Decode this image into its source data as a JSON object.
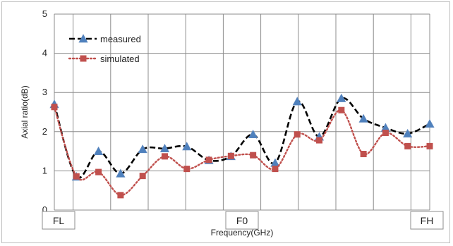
{
  "chart_data": {
    "type": "line",
    "xlabel": "Frequency(GHz)",
    "ylabel": "Axial ratio(dB)",
    "ylim": [
      0,
      5
    ],
    "yticks": [
      0,
      1,
      2,
      3,
      4,
      5
    ],
    "x_tick_labels": [
      {
        "label": "FL",
        "index": 0
      },
      {
        "label": "F0",
        "index": 10
      },
      {
        "label": "FH",
        "index": 20
      }
    ],
    "grid": true,
    "legend": "top-left",
    "series": [
      {
        "name": "measured",
        "color": "#000000",
        "marker_color": "#4f81bd",
        "marker": "triangle",
        "line_style": "dashed",
        "values": [
          2.7,
          0.85,
          1.5,
          0.93,
          1.55,
          1.57,
          1.62,
          1.27,
          1.37,
          1.93,
          1.2,
          2.77,
          1.87,
          2.85,
          2.33,
          2.1,
          1.95,
          2.2
        ]
      },
      {
        "name": "simulated",
        "color": "#c0504d",
        "marker_color": "#c0504d",
        "marker": "square",
        "line_style": "dotted",
        "values": [
          2.63,
          0.86,
          0.97,
          0.38,
          0.87,
          1.37,
          1.05,
          1.28,
          1.38,
          1.4,
          1.05,
          1.93,
          1.78,
          2.55,
          1.43,
          1.97,
          1.63,
          1.63
        ]
      }
    ],
    "x_positions": [
      0,
      1,
      2,
      3,
      4,
      5,
      6,
      7,
      8,
      9,
      10,
      11,
      12,
      13,
      14,
      15,
      16,
      17
    ]
  }
}
